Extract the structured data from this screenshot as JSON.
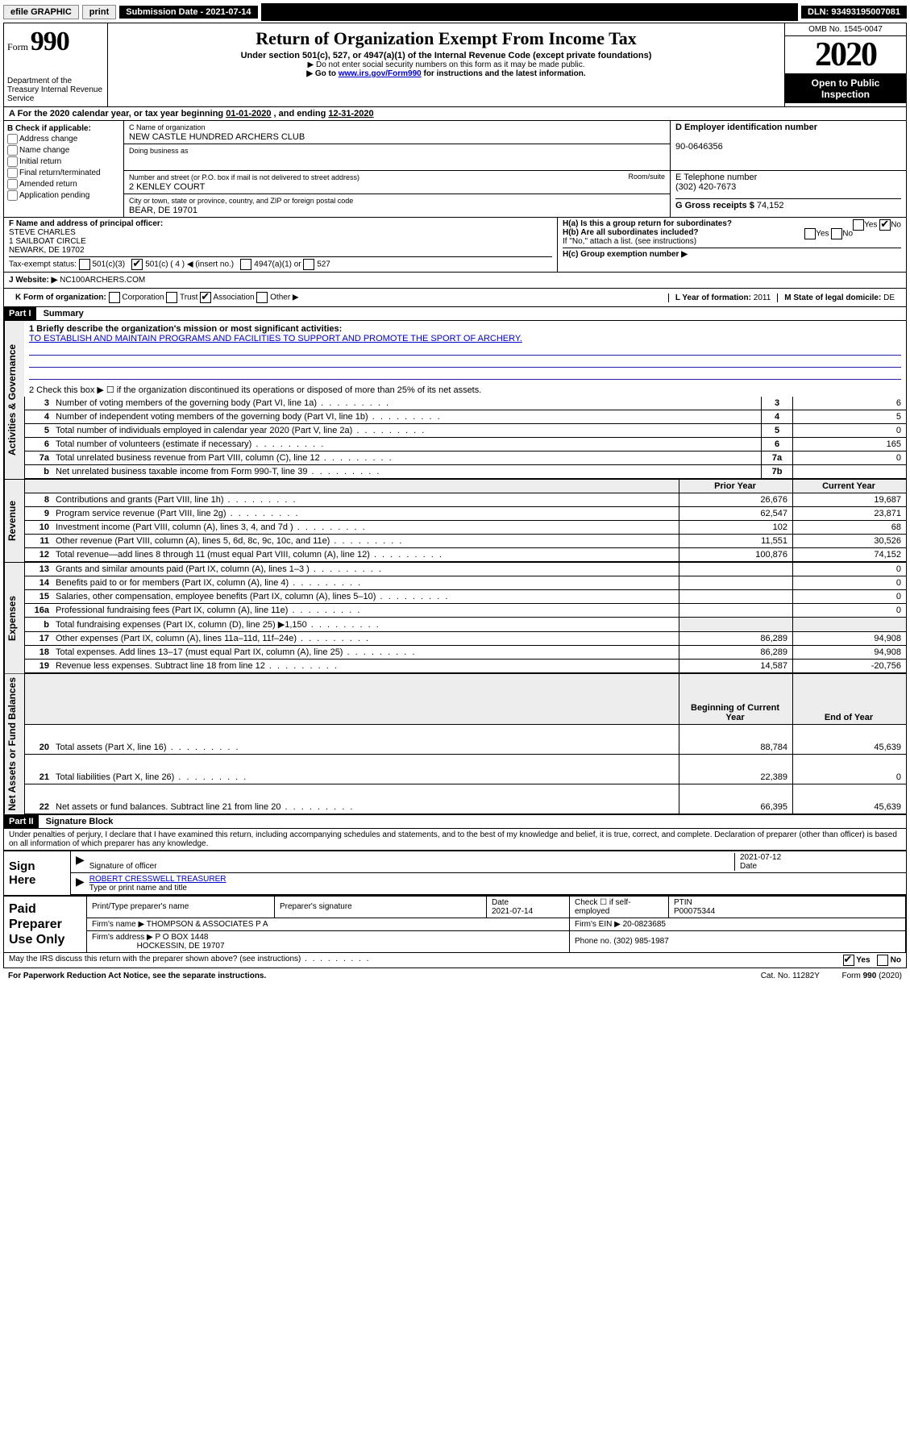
{
  "topbar": {
    "efile": "efile GRAPHIC",
    "print": "print",
    "subdate_label": "Submission Date - 2021-07-14",
    "dln": "DLN: 93493195007081"
  },
  "header": {
    "form_label": "Form",
    "form_number": "990",
    "dept": "Department of the Treasury Internal Revenue Service",
    "title": "Return of Organization Exempt From Income Tax",
    "subtitle": "Under section 501(c), 527, or 4947(a)(1) of the Internal Revenue Code (except private foundations)",
    "note1": "▶ Do not enter social security numbers on this form as it may be made public.",
    "note2_pre": "▶ Go to ",
    "note2_link": "www.irs.gov/Form990",
    "note2_post": " for instructions and the latest information.",
    "omb": "OMB No. 1545-0047",
    "year": "2020",
    "open_public": "Open to Public Inspection"
  },
  "period": {
    "text_pre": "A For the 2020 calendar year, or tax year beginning ",
    "begin": "01-01-2020",
    "text_mid": " , and ending ",
    "end": "12-31-2020"
  },
  "blockB": {
    "label": "B Check if applicable:",
    "items": [
      "Address change",
      "Name change",
      "Initial return",
      "Final return/terminated",
      "Amended return",
      "Application pending"
    ]
  },
  "blockC": {
    "name_label": "C Name of organization",
    "name": "NEW CASTLE HUNDRED ARCHERS CLUB",
    "dba_label": "Doing business as",
    "addr_label": "Number and street (or P.O. box if mail is not delivered to street address)",
    "room_label": "Room/suite",
    "addr": "2 KENLEY COURT",
    "city_label": "City or town, state or province, country, and ZIP or foreign postal code",
    "city": "BEAR, DE  19701"
  },
  "blockD": {
    "label": "D Employer identification number",
    "value": "90-0646356"
  },
  "blockE": {
    "label": "E Telephone number",
    "value": "(302) 420-7673"
  },
  "blockG": {
    "label": "G Gross receipts $",
    "value": "74,152"
  },
  "blockF": {
    "label": "F Name and address of principal officer:",
    "name": "STEVE CHARLES",
    "addr1": "1 SAILBOAT CIRCLE",
    "addr2": "NEWARK, DE  19702"
  },
  "blockH": {
    "ha": "H(a)  Is this a group return for subordinates?",
    "hb": "H(b)  Are all subordinates included?",
    "hb_note": "If \"No,\" attach a list. (see instructions)",
    "hc": "H(c)  Group exemption number ▶",
    "yes": "Yes",
    "no": "No"
  },
  "status": {
    "label": "Tax-exempt status:",
    "c3": "501(c)(3)",
    "c": "501(c) ( 4 ) ◀ (insert no.)",
    "a1": "4947(a)(1) or",
    "s527": "527"
  },
  "blockJ": {
    "label": "J     Website: ▶",
    "value": "NC100ARCHERS.COM"
  },
  "blockK": {
    "label": "K Form of organization:",
    "corp": "Corporation",
    "trust": "Trust",
    "assoc": "Association",
    "other": "Other ▶"
  },
  "blockL": {
    "label": "L Year of formation:",
    "value": "2011"
  },
  "blockM": {
    "label": "M State of legal domicile:",
    "value": "DE"
  },
  "part1": {
    "header": "Part I",
    "title": "Summary",
    "q1_label": "1  Briefly describe the organization's mission or most significant activities:",
    "mission": "TO ESTABLISH AND MAINTAIN PROGRAMS AND FACILITIES TO SUPPORT AND PROMOTE THE SPORT OF ARCHERY.",
    "q2": "2   Check this box ▶ ☐  if the organization discontinued its operations or disposed of more than 25% of its net assets.",
    "rows_gov": [
      {
        "n": "3",
        "lbl": "Number of voting members of the governing body (Part VI, line 1a)",
        "box": "3",
        "val": "6"
      },
      {
        "n": "4",
        "lbl": "Number of independent voting members of the governing body (Part VI, line 1b)",
        "box": "4",
        "val": "5"
      },
      {
        "n": "5",
        "lbl": "Total number of individuals employed in calendar year 2020 (Part V, line 2a)",
        "box": "5",
        "val": "0"
      },
      {
        "n": "6",
        "lbl": "Total number of volunteers (estimate if necessary)",
        "box": "6",
        "val": "165"
      },
      {
        "n": "7a",
        "lbl": "Total unrelated business revenue from Part VIII, column (C), line 12",
        "box": "7a",
        "val": "0"
      },
      {
        "n": "b",
        "lbl": "Net unrelated business taxable income from Form 990-T, line 39",
        "box": "7b",
        "val": ""
      }
    ],
    "col_prior": "Prior Year",
    "col_current": "Current Year",
    "rows_rev": [
      {
        "n": "8",
        "lbl": "Contributions and grants (Part VIII, line 1h)",
        "p": "26,676",
        "c": "19,687"
      },
      {
        "n": "9",
        "lbl": "Program service revenue (Part VIII, line 2g)",
        "p": "62,547",
        "c": "23,871"
      },
      {
        "n": "10",
        "lbl": "Investment income (Part VIII, column (A), lines 3, 4, and 7d )",
        "p": "102",
        "c": "68"
      },
      {
        "n": "11",
        "lbl": "Other revenue (Part VIII, column (A), lines 5, 6d, 8c, 9c, 10c, and 11e)",
        "p": "11,551",
        "c": "30,526"
      },
      {
        "n": "12",
        "lbl": "Total revenue—add lines 8 through 11 (must equal Part VIII, column (A), line 12)",
        "p": "100,876",
        "c": "74,152"
      }
    ],
    "rows_exp": [
      {
        "n": "13",
        "lbl": "Grants and similar amounts paid (Part IX, column (A), lines 1–3 )",
        "p": "",
        "c": "0"
      },
      {
        "n": "14",
        "lbl": "Benefits paid to or for members (Part IX, column (A), line 4)",
        "p": "",
        "c": "0"
      },
      {
        "n": "15",
        "lbl": "Salaries, other compensation, employee benefits (Part IX, column (A), lines 5–10)",
        "p": "",
        "c": "0"
      },
      {
        "n": "16a",
        "lbl": "Professional fundraising fees (Part IX, column (A), line 11e)",
        "p": "",
        "c": "0"
      },
      {
        "n": "b",
        "lbl": "Total fundraising expenses (Part IX, column (D), line 25) ▶1,150",
        "p": "grey",
        "c": "grey"
      },
      {
        "n": "17",
        "lbl": "Other expenses (Part IX, column (A), lines 11a–11d, 11f–24e)",
        "p": "86,289",
        "c": "94,908"
      },
      {
        "n": "18",
        "lbl": "Total expenses. Add lines 13–17 (must equal Part IX, column (A), line 25)",
        "p": "86,289",
        "c": "94,908"
      },
      {
        "n": "19",
        "lbl": "Revenue less expenses. Subtract line 18 from line 12",
        "p": "14,587",
        "c": "-20,756"
      }
    ],
    "col_begin": "Beginning of Current Year",
    "col_end": "End of Year",
    "rows_net": [
      {
        "n": "20",
        "lbl": "Total assets (Part X, line 16)",
        "p": "88,784",
        "c": "45,639"
      },
      {
        "n": "21",
        "lbl": "Total liabilities (Part X, line 26)",
        "p": "22,389",
        "c": "0"
      },
      {
        "n": "22",
        "lbl": "Net assets or fund balances. Subtract line 21 from line 20",
        "p": "66,395",
        "c": "45,639"
      }
    ],
    "vtab_gov": "Activities & Governance",
    "vtab_rev": "Revenue",
    "vtab_exp": "Expenses",
    "vtab_net": "Net Assets or Fund Balances"
  },
  "part2": {
    "header": "Part II",
    "title": "Signature Block",
    "decl": "Under penalties of perjury, I declare that I have examined this return, including accompanying schedules and statements, and to the best of my knowledge and belief, it is true, correct, and complete. Declaration of preparer (other than officer) is based on all information of which preparer has any knowledge.",
    "sign_here": "Sign Here",
    "sig_officer": "Signature of officer",
    "sig_date": "2021-07-12",
    "date_lbl": "Date",
    "name_title": "ROBERT CRESSWELL TREASURER",
    "type_lbl": "Type or print name and title",
    "paid": "Paid Preparer Use Only",
    "pp_name_lbl": "Print/Type preparer's name",
    "pp_sig_lbl": "Preparer's signature",
    "pp_date_lbl": "Date",
    "pp_date": "2021-07-14",
    "pp_check": "Check ☐ if self-employed",
    "ptin_lbl": "PTIN",
    "ptin": "P00075344",
    "firm_name_lbl": "Firm's name     ▶",
    "firm_name": "THOMPSON & ASSOCIATES P A",
    "firm_ein_lbl": "Firm's EIN ▶",
    "firm_ein": "20-0823685",
    "firm_addr_lbl": "Firm's address ▶",
    "firm_addr": "P O BOX 1448",
    "firm_city": "HOCKESSIN, DE  19707",
    "phone_lbl": "Phone no.",
    "phone": "(302) 985-1987",
    "discuss": "May the IRS discuss this return with the preparer shown above? (see instructions)",
    "yes": "Yes",
    "no": "No"
  },
  "footer": {
    "pra": "For Paperwork Reduction Act Notice, see the separate instructions.",
    "cat": "Cat. No. 11282Y",
    "form": "Form 990 (2020)"
  }
}
